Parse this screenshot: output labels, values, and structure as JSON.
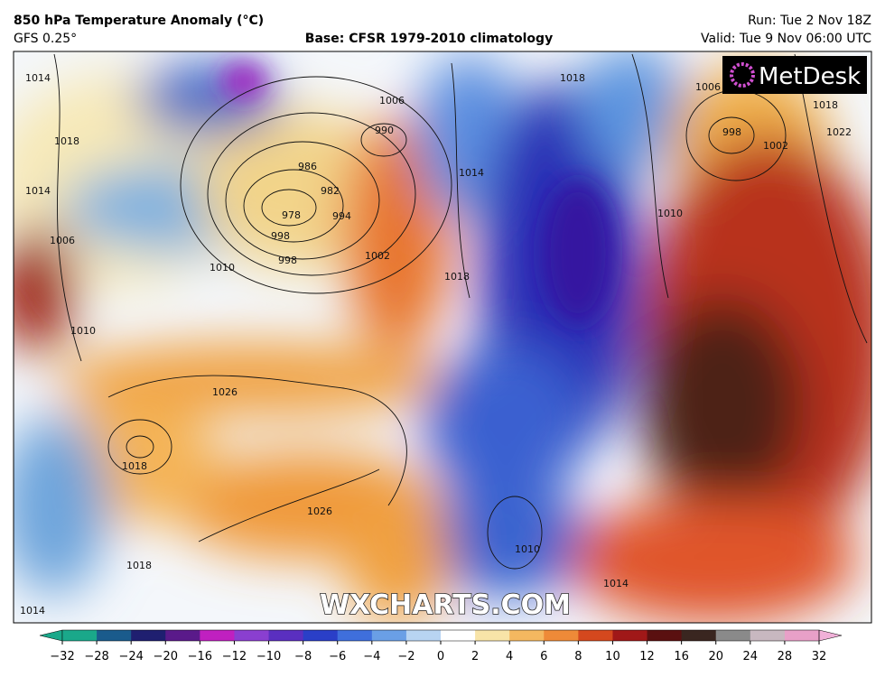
{
  "header": {
    "title": "850 hPa Temperature Anomaly (°C)",
    "model": "GFS 0.25°",
    "base": "Base: CFSR 1979-2010 climatology",
    "run": "Run: Tue 2 Nov 18Z",
    "valid": "Valid: Tue 9 Nov 06:00 UTC"
  },
  "logo": "MetDesk",
  "watermark": "WXCHARTS.COM",
  "isobar_labels": [
    1014,
    1018,
    1014,
    1006,
    1010,
    1006,
    990,
    986,
    982,
    978,
    998,
    998,
    994,
    1002,
    1010,
    1018,
    1014,
    1018,
    1026,
    1026,
    1018,
    1018,
    1010,
    1014,
    1014,
    1006,
    998,
    1002,
    1018,
    1022,
    1010
  ],
  "colorbar": {
    "ticks": [
      "−32",
      "−28",
      "−24",
      "−20",
      "−16",
      "−12",
      "−10",
      "−8",
      "−6",
      "−4",
      "−2",
      "0",
      "2",
      "4",
      "6",
      "8",
      "10",
      "12",
      "16",
      "20",
      "24",
      "28",
      "32"
    ]
  }
}
